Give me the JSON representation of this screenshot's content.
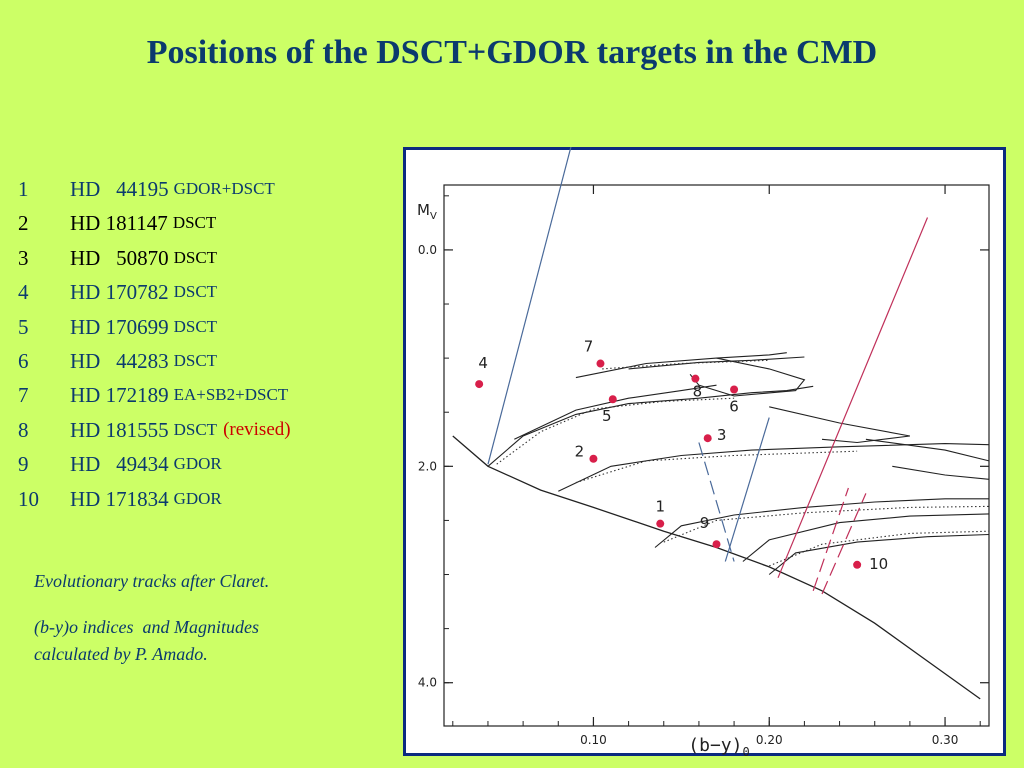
{
  "slide": {
    "title": "Positions of the DSCT+GDOR targets in the CMD",
    "accent_colors": {
      "background": "#ccff66",
      "title": "#0b3a6e",
      "frame": "#0b2a80",
      "highlight": "#cc0000",
      "marker": "#d81f4a"
    }
  },
  "targets": [
    {
      "num": "1",
      "star": "HD   44195",
      "type": "GDOR+DSCT",
      "note": ""
    },
    {
      "num": "2",
      "star": "HD 181147",
      "type": "DSCT",
      "note": ""
    },
    {
      "num": "3",
      "star": "HD   50870",
      "type": "DSCT",
      "note": ""
    },
    {
      "num": "4",
      "star": "HD 170782",
      "type": "DSCT",
      "note": ""
    },
    {
      "num": "5",
      "star": "HD 170699",
      "type": "DSCT",
      "note": ""
    },
    {
      "num": "6",
      "star": "HD   44283",
      "type": "DSCT",
      "note": ""
    },
    {
      "num": "7",
      "star": "HD 172189",
      "type": "EA+SB2+DSCT",
      "note": ""
    },
    {
      "num": "8",
      "star": "HD 181555",
      "type": "DSCT",
      "note": "(revised)"
    },
    {
      "num": "9",
      "star": "HD   49434",
      "type": "GDOR",
      "note": ""
    },
    {
      "num": "10",
      "star": "HD 171834",
      "type": "GDOR",
      "note": ""
    }
  ],
  "notes": {
    "line1": "Evolutionary tracks after Claret.",
    "line2": "(b-y)o indices  and Magnitudes",
    "line3": "calculated by P. Amado."
  },
  "chart_data": {
    "type": "scatter",
    "xlabel": "(b−y)",
    "xlabel_sub": "0",
    "ylabel": "M",
    "ylabel_sub": "V",
    "xlim": [
      0.015,
      0.325
    ],
    "ylim": [
      4.4,
      -0.6
    ],
    "y_inverted": true,
    "x_ticks": [
      0.1,
      0.2,
      0.3
    ],
    "x_tick_labels": [
      "0.10",
      "0.20",
      "0.30"
    ],
    "y_ticks": [
      0.0,
      2.0,
      4.0
    ],
    "y_tick_labels": [
      "0.0",
      "2.0",
      "4.0"
    ],
    "points": [
      {
        "label": "1",
        "x": 0.138,
        "y": 2.53
      },
      {
        "label": "2",
        "x": 0.1,
        "y": 1.93
      },
      {
        "label": "3",
        "x": 0.165,
        "y": 1.74
      },
      {
        "label": "4",
        "x": 0.035,
        "y": 1.24
      },
      {
        "label": "5",
        "x": 0.111,
        "y": 1.38
      },
      {
        "label": "6",
        "x": 0.18,
        "y": 1.29
      },
      {
        "label": "7",
        "x": 0.104,
        "y": 1.05
      },
      {
        "label": "8",
        "x": 0.158,
        "y": 1.19
      },
      {
        "label": "9",
        "x": 0.17,
        "y": 2.72
      },
      {
        "label": "10",
        "x": 0.25,
        "y": 2.91
      }
    ],
    "zams": [
      [
        0.02,
        1.72
      ],
      [
        0.04,
        2.0
      ],
      [
        0.07,
        2.22
      ],
      [
        0.1,
        2.38
      ],
      [
        0.14,
        2.6
      ],
      [
        0.17,
        2.75
      ],
      [
        0.2,
        2.93
      ],
      [
        0.23,
        3.15
      ],
      [
        0.26,
        3.45
      ],
      [
        0.29,
        3.8
      ],
      [
        0.32,
        4.15
      ]
    ],
    "tracks": [
      [
        [
          0.04,
          2.0
        ],
        [
          0.06,
          1.72
        ],
        [
          0.09,
          1.52
        ],
        [
          0.12,
          1.42
        ],
        [
          0.16,
          1.37
        ],
        [
          0.19,
          1.32
        ],
        [
          0.21,
          1.3
        ],
        [
          0.225,
          1.26
        ]
      ],
      [
        [
          0.09,
          1.18
        ],
        [
          0.13,
          1.05
        ],
        [
          0.17,
          1.0
        ],
        [
          0.2,
          0.97
        ],
        [
          0.21,
          0.95
        ]
      ],
      [
        [
          0.12,
          1.1
        ],
        [
          0.16,
          1.04
        ],
        [
          0.19,
          1.02
        ],
        [
          0.22,
          0.99
        ]
      ],
      [
        [
          0.055,
          1.75
        ],
        [
          0.09,
          1.48
        ],
        [
          0.12,
          1.37
        ],
        [
          0.15,
          1.3
        ],
        [
          0.17,
          1.25
        ]
      ],
      [
        [
          0.08,
          2.23
        ],
        [
          0.11,
          2.0
        ],
        [
          0.15,
          1.9
        ],
        [
          0.19,
          1.85
        ],
        [
          0.24,
          1.82
        ],
        [
          0.3,
          1.79
        ],
        [
          0.325,
          1.8
        ]
      ],
      [
        [
          0.135,
          2.75
        ],
        [
          0.15,
          2.55
        ],
        [
          0.18,
          2.45
        ],
        [
          0.22,
          2.38
        ],
        [
          0.26,
          2.33
        ],
        [
          0.3,
          2.3
        ],
        [
          0.325,
          2.3
        ]
      ],
      [
        [
          0.185,
          2.88
        ],
        [
          0.2,
          2.68
        ],
        [
          0.24,
          2.52
        ],
        [
          0.28,
          2.46
        ],
        [
          0.325,
          2.44
        ]
      ],
      [
        [
          0.2,
          3.0
        ],
        [
          0.215,
          2.8
        ],
        [
          0.25,
          2.7
        ],
        [
          0.29,
          2.65
        ],
        [
          0.325,
          2.63
        ]
      ],
      [
        [
          0.17,
          1.0
        ],
        [
          0.2,
          1.1
        ],
        [
          0.22,
          1.2
        ],
        [
          0.215,
          1.3
        ],
        [
          0.18,
          1.35
        ],
        [
          0.16,
          1.25
        ],
        [
          0.155,
          1.15
        ]
      ],
      [
        [
          0.2,
          1.45
        ],
        [
          0.24,
          1.6
        ],
        [
          0.28,
          1.72
        ],
        [
          0.25,
          1.78
        ],
        [
          0.23,
          1.75
        ]
      ],
      [
        [
          0.255,
          1.75
        ],
        [
          0.3,
          1.85
        ],
        [
          0.325,
          1.95
        ]
      ],
      [
        [
          0.27,
          2.0
        ],
        [
          0.3,
          2.08
        ],
        [
          0.325,
          2.12
        ]
      ]
    ],
    "dotted_tracks": [
      [
        [
          0.045,
          1.98
        ],
        [
          0.07,
          1.68
        ],
        [
          0.1,
          1.47
        ],
        [
          0.14,
          1.4
        ],
        [
          0.18,
          1.37
        ]
      ],
      [
        [
          0.105,
          1.1
        ],
        [
          0.15,
          1.05
        ],
        [
          0.2,
          1.02
        ]
      ],
      [
        [
          0.09,
          2.15
        ],
        [
          0.13,
          1.95
        ],
        [
          0.18,
          1.9
        ],
        [
          0.25,
          1.86
        ]
      ],
      [
        [
          0.14,
          2.7
        ],
        [
          0.17,
          2.5
        ],
        [
          0.22,
          2.43
        ],
        [
          0.28,
          2.38
        ],
        [
          0.325,
          2.37
        ]
      ],
      [
        [
          0.2,
          2.92
        ],
        [
          0.23,
          2.72
        ],
        [
          0.28,
          2.62
        ],
        [
          0.325,
          2.6
        ]
      ]
    ],
    "boundary_lines": [
      {
        "color": "#4a6a9a",
        "dash": false,
        "points": [
          [
            0.04,
            1.98
          ],
          [
            0.088,
            -1.0
          ]
        ]
      },
      {
        "color": "#4a6a9a",
        "dash": false,
        "points": [
          [
            0.175,
            2.88
          ],
          [
            0.2,
            1.55
          ]
        ]
      },
      {
        "color": "#4a6a9a",
        "dash": true,
        "points": [
          [
            0.16,
            1.78
          ],
          [
            0.18,
            2.88
          ]
        ]
      },
      {
        "color": "#c0305a",
        "dash": false,
        "points": [
          [
            0.205,
            3.03
          ],
          [
            0.29,
            -0.3
          ]
        ]
      },
      {
        "color": "#c0305a",
        "dash": true,
        "points": [
          [
            0.225,
            3.15
          ],
          [
            0.245,
            2.2
          ]
        ]
      },
      {
        "color": "#c0305a",
        "dash": true,
        "points": [
          [
            0.23,
            3.18
          ],
          [
            0.255,
            2.25
          ]
        ]
      }
    ]
  }
}
